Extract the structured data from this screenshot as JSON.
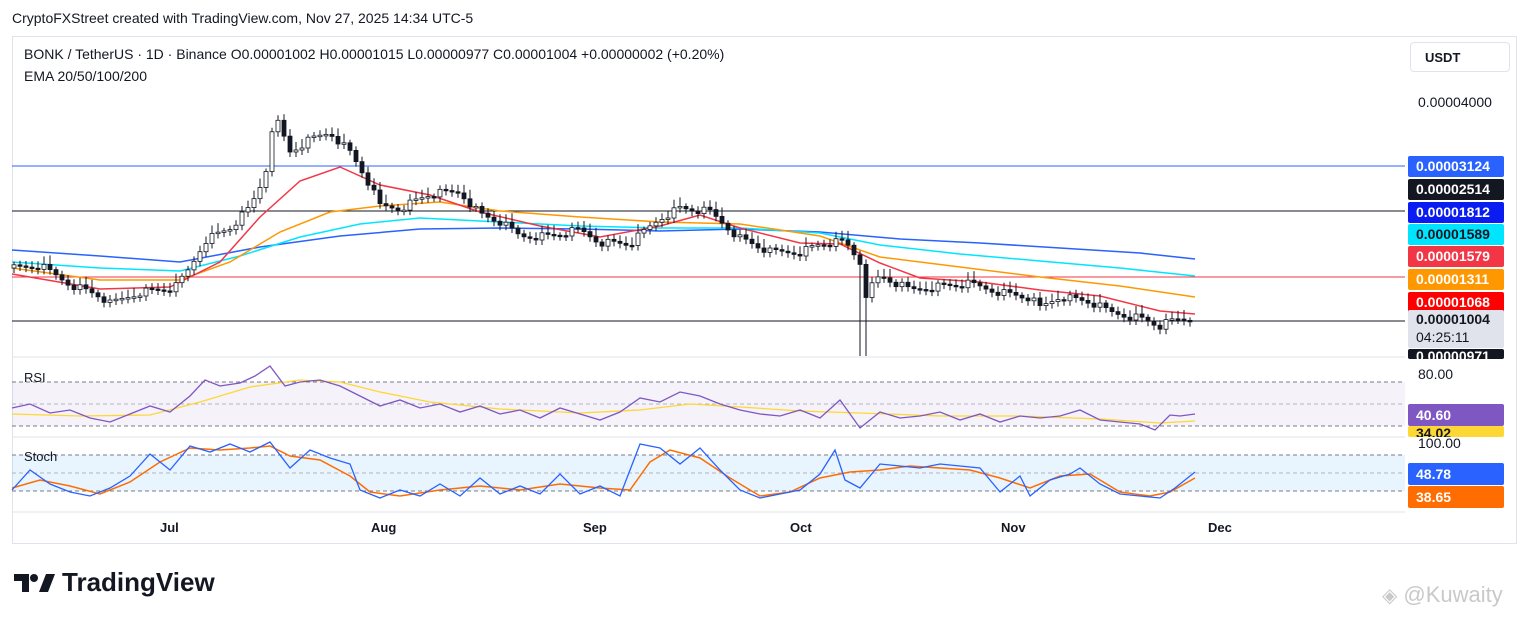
{
  "header": {
    "credit": "CryptoFXStreet created with TradingView.com, Nov 27, 2025 14:34 UTC-5"
  },
  "legend": {
    "line1": "BONK / TetherUS · 1D · Binance  O0.00001002  H0.00001015  L0.00000977  C0.00001004  +0.00000002 (+0.20%)",
    "line2": "EMA 20/50/100/200"
  },
  "unit_button": "USDT",
  "price_axis": {
    "top_tick": "0.00004000",
    "labels": [
      {
        "text": "0.00003124",
        "color": "#2962ff",
        "text_color": "#ffffff"
      },
      {
        "text": "0.00002514",
        "color": "#131722",
        "text_color": "#ffffff"
      },
      {
        "text": "0.00001812",
        "color": "#0b1cf2",
        "text_color": "#ffffff"
      },
      {
        "text": "0.00001589",
        "color": "#00e5ff",
        "text_color": "#131722"
      },
      {
        "text": "0.00001579",
        "color": "#f23645",
        "text_color": "#ffffff"
      },
      {
        "text": "0.00001311",
        "color": "#ff9800",
        "text_color": "#ffffff"
      },
      {
        "text": "0.00001068",
        "color": "#ff0000",
        "text_color": "#ffffff"
      }
    ],
    "current_price": "0.00001004",
    "countdown": "04:25:11",
    "low_partial": "0.00000971"
  },
  "rsi": {
    "title": "RSI",
    "level_80": "80.00",
    "value": "40.60",
    "ma_value": "34.02",
    "value_color": "#7e57c2",
    "ma_color": "#fdd835"
  },
  "stoch": {
    "title": "Stoch",
    "level_100": "100.00",
    "k_value": "48.78",
    "d_value": "38.65",
    "k_color": "#2962ff",
    "d_color": "#ff6d00"
  },
  "time_axis": [
    "Jul",
    "Aug",
    "Sep",
    "Oct",
    "Nov",
    "Dec"
  ],
  "branding": {
    "logo_text": "TradingView",
    "watermark": "@Kuwaity"
  },
  "chart_data": {
    "type": "candlestick",
    "symbol": "BONK / TetherUS",
    "timeframe": "1D",
    "exchange": "Binance",
    "ohlc_last": {
      "open": 1.002e-05,
      "high": 1.015e-05,
      "low": 9.77e-06,
      "close": 1.004e-05,
      "change": 2e-08,
      "change_pct": 0.2
    },
    "indicators": [
      "EMA 20",
      "EMA 50",
      "EMA 100",
      "EMA 200",
      "RSI",
      "Stoch"
    ],
    "horizontal_levels": [
      3.124e-05,
      2.514e-05,
      1.579e-05,
      1.004e-05
    ],
    "ema_values": {
      "ema20": 1.068e-05,
      "ema50": 1.311e-05,
      "ema100": 1.589e-05,
      "ema200": 1.812e-05
    },
    "colors": {
      "ema20": "#f23645",
      "ema50": "#ff9800",
      "ema100": "#00e5ff",
      "ema200": "#2962ff"
    },
    "series": [
      {
        "name": "close",
        "x": [
          "2025-06-12",
          "2025-06-20",
          "2025-06-28",
          "2025-07-03",
          "2025-07-10",
          "2025-07-15",
          "2025-07-18",
          "2025-07-21",
          "2025-07-25",
          "2025-07-30",
          "2025-08-03",
          "2025-08-10",
          "2025-08-15",
          "2025-08-20",
          "2025-08-25",
          "2025-09-01",
          "2025-09-06",
          "2025-09-12",
          "2025-09-16",
          "2025-09-20",
          "2025-09-25",
          "2025-10-01",
          "2025-10-06",
          "2025-10-09",
          "2025-10-10",
          "2025-10-12",
          "2025-10-18",
          "2025-10-25",
          "2025-11-01",
          "2025-11-05",
          "2025-11-10",
          "2025-11-15",
          "2025-11-20",
          "2025-11-24",
          "2025-11-27"
        ],
        "y": [
          1.55e-05,
          1.41e-05,
          1.33e-05,
          1.41e-05,
          1.68e-05,
          2.25e-05,
          3.42e-05,
          3.15e-05,
          3.32e-05,
          3.05e-05,
          2.45e-05,
          2.35e-05,
          2.48e-05,
          2.3e-05,
          2.05e-05,
          1.97e-05,
          2e-05,
          2.3e-05,
          2.38e-05,
          2.12e-05,
          1.9e-05,
          1.95e-05,
          2.05e-05,
          1.88e-05,
          1.28e-05,
          1.51e-05,
          1.38e-05,
          1.44e-05,
          1.32e-05,
          1.26e-05,
          1.28e-05,
          1.13e-05,
          1.04e-05,
          9.9e-06,
          1e-05
        ]
      }
    ]
  }
}
